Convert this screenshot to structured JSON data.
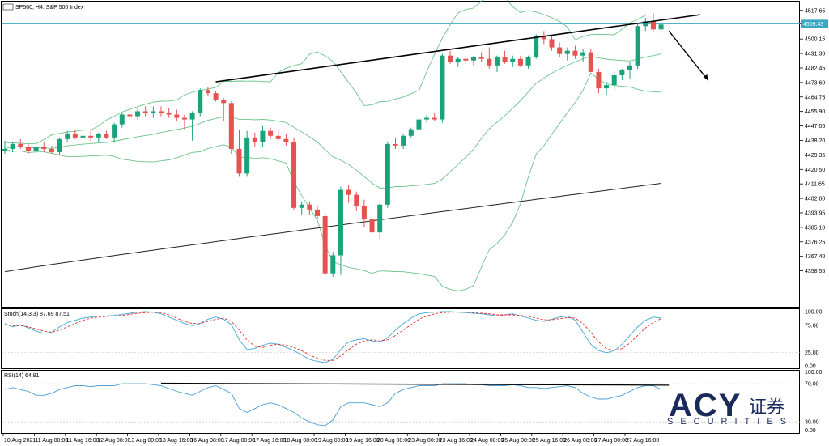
{
  "colors": {
    "bull": "#1aa37a",
    "bear": "#e5524f",
    "band": "#6cc48a",
    "sma": "#222222",
    "stoch_main": "#3fa9d6",
    "stoch_signal": "#d9302c",
    "rsi": "#4a9fd6",
    "price_line": "#38a8c0",
    "logo": "#1a2a5a"
  },
  "chart_data": [
    {
      "type": "line",
      "title": "SP500, H4:  S&P 500 Index",
      "ylim": [
        4345,
        4520
      ],
      "price_labels": [
        "4517.65",
        "4509.43",
        "4500.15",
        "4491.30",
        "4482.45",
        "4473.60",
        "4464.75",
        "4455.90",
        "4447.05",
        "4438.20",
        "4429.35",
        "4420.50",
        "4411.65",
        "4402.80",
        "4393.95",
        "4385.10",
        "4376.25",
        "4367.40",
        "4358.55"
      ],
      "current_price": "4509.43",
      "x_labels": [
        "10 Aug 2021",
        "11 Aug 00:00",
        "11 Aug 16:00",
        "12 Aug 08:00",
        "13 Aug 00:00",
        "13 Aug 16:00",
        "16 Aug 08:00",
        "17 Aug 00:00",
        "17 Aug 16:00",
        "18 Aug 08:00",
        "19 Aug 00:00",
        "19 Aug 16:00",
        "20 Aug 08:00",
        "23 Aug 00:00",
        "23 Aug 16:00",
        "24 Aug 08:00",
        "25 Aug 00:00",
        "25 Aug 16:00",
        "26 Aug 08:00",
        "27 Aug 00:00",
        "27 Aug 16:00"
      ],
      "candles": [
        [
          4432,
          4438,
          4430,
          4433
        ],
        [
          4433,
          4437,
          4431,
          4436
        ],
        [
          4436,
          4439,
          4433,
          4434
        ],
        [
          4434,
          4436,
          4430,
          4432
        ],
        [
          4432,
          4435,
          4429,
          4434
        ],
        [
          4434,
          4437,
          4431,
          4433
        ],
        [
          4433,
          4435,
          4430,
          4431
        ],
        [
          4431,
          4440,
          4429,
          4439
        ],
        [
          4439,
          4444,
          4437,
          4442
        ],
        [
          4442,
          4445,
          4439,
          4440
        ],
        [
          4440,
          4443,
          4437,
          4441
        ],
        [
          4441,
          4444,
          4438,
          4440
        ],
        [
          4440,
          4443,
          4437,
          4442
        ],
        [
          4442,
          4444,
          4439,
          4440
        ],
        [
          4440,
          4449,
          4437,
          4448
        ],
        [
          4448,
          4455,
          4446,
          4454
        ],
        [
          4454,
          4458,
          4451,
          4453
        ],
        [
          4453,
          4458,
          4451,
          4456
        ],
        [
          4456,
          4459,
          4453,
          4455
        ],
        [
          4455,
          4459,
          4452,
          4456
        ],
        [
          4456,
          4459,
          4453,
          4455
        ],
        [
          4455,
          4458,
          4452,
          4454
        ],
        [
          4454,
          4457,
          4450,
          4452
        ],
        [
          4452,
          4454,
          4445,
          4451
        ],
        [
          4451,
          4456,
          4438,
          4455
        ],
        [
          4455,
          4470,
          4453,
          4469
        ],
        [
          4469,
          4471,
          4465,
          4467
        ],
        [
          4467,
          4468,
          4462,
          4463
        ],
        [
          4463,
          4464,
          4450,
          4461
        ],
        [
          4461,
          4462,
          4430,
          4433
        ],
        [
          4433,
          4445,
          4416,
          4418
        ],
        [
          4418,
          4444,
          4416,
          4440
        ],
        [
          4440,
          4443,
          4434,
          4437
        ],
        [
          4437,
          4447,
          4434,
          4444
        ],
        [
          4444,
          4446,
          4439,
          4441
        ],
        [
          4441,
          4445,
          4438,
          4439
        ],
        [
          4439,
          4442,
          4435,
          4437
        ],
        [
          4437,
          4440,
          4396,
          4397
        ],
        [
          4397,
          4401,
          4393,
          4399
        ],
        [
          4399,
          4401,
          4393,
          4396
        ],
        [
          4396,
          4398,
          4390,
          4392
        ],
        [
          4392,
          4394,
          4355,
          4357
        ],
        [
          4357,
          4370,
          4355,
          4368
        ],
        [
          4368,
          4410,
          4356,
          4408
        ],
        [
          4408,
          4411,
          4400,
          4405
        ],
        [
          4405,
          4407,
          4395,
          4398
        ],
        [
          4398,
          4402,
          4385,
          4390
        ],
        [
          4390,
          4392,
          4379,
          4382
        ],
        [
          4382,
          4400,
          4378,
          4399
        ],
        [
          4399,
          4437,
          4397,
          4436
        ],
        [
          4436,
          4440,
          4433,
          4435
        ],
        [
          4435,
          4442,
          4433,
          4441
        ],
        [
          4441,
          4446,
          4440,
          4445
        ],
        [
          4445,
          4452,
          4443,
          4451
        ],
        [
          4451,
          4454,
          4449,
          4452
        ],
        [
          4452,
          4455,
          4450,
          4451
        ],
        [
          4451,
          4491,
          4449,
          4490
        ],
        [
          4490,
          4493,
          4485,
          4486
        ],
        [
          4486,
          4489,
          4483,
          4488
        ],
        [
          4488,
          4490,
          4485,
          4487
        ],
        [
          4487,
          4490,
          4484,
          4489
        ],
        [
          4489,
          4492,
          4486,
          4488
        ],
        [
          4488,
          4495,
          4482,
          4484
        ],
        [
          4484,
          4490,
          4480,
          4489
        ],
        [
          4489,
          4493,
          4485,
          4486
        ],
        [
          4486,
          4490,
          4483,
          4488
        ],
        [
          4488,
          4490,
          4483,
          4484
        ],
        [
          4484,
          4490,
          4482,
          4489
        ],
        [
          4489,
          4503,
          4488,
          4502
        ],
        [
          4502,
          4505,
          4497,
          4500
        ],
        [
          4500,
          4502,
          4493,
          4495
        ],
        [
          4495,
          4498,
          4489,
          4491
        ],
        [
          4491,
          4495,
          4487,
          4493
        ],
        [
          4493,
          4496,
          4488,
          4490
        ],
        [
          4490,
          4494,
          4486,
          4492
        ],
        [
          4492,
          4494,
          4480,
          4480
        ],
        [
          4480,
          4482,
          4467,
          4470
        ],
        [
          4470,
          4474,
          4466,
          4472
        ],
        [
          4472,
          4480,
          4469,
          4478
        ],
        [
          4478,
          4482,
          4475,
          4481
        ],
        [
          4481,
          4486,
          4476,
          4484
        ],
        [
          4484,
          4510,
          4482,
          4508
        ],
        [
          4508,
          4513,
          4505,
          4511
        ],
        [
          4511,
          4516,
          4505,
          4506
        ],
        [
          4506,
          4510,
          4503,
          4509
        ]
      ],
      "trendline_label": "",
      "arrow_label": ""
    },
    {
      "type": "line",
      "title": "Stoch(14,3,3) 87.69 87.51",
      "ylim": [
        0,
        100
      ],
      "levels": [
        "100.00",
        "75.00",
        "25.00",
        "0.00"
      ],
      "main": [
        78,
        72,
        76,
        70,
        64,
        60,
        62,
        72,
        80,
        84,
        88,
        90,
        92,
        92,
        93,
        95,
        97,
        99,
        100,
        99,
        96,
        90,
        84,
        78,
        74,
        78,
        86,
        90,
        86,
        76,
        48,
        30,
        32,
        38,
        42,
        40,
        34,
        28,
        20,
        12,
        8,
        6,
        12,
        30,
        44,
        48,
        50,
        46,
        44,
        52,
        66,
        78,
        88,
        96,
        98,
        99,
        100,
        100,
        99,
        98,
        97,
        96,
        94,
        92,
        94,
        96,
        92,
        88,
        84,
        82,
        86,
        90,
        92,
        84,
        62,
        40,
        28,
        24,
        28,
        40,
        56,
        72,
        84,
        90,
        88
      ],
      "signal": [
        76,
        74,
        74,
        72,
        68,
        64,
        62,
        66,
        72,
        78,
        84,
        88,
        90,
        91,
        92,
        93,
        95,
        97,
        98,
        99,
        98,
        94,
        88,
        82,
        78,
        78,
        82,
        86,
        88,
        82,
        66,
        48,
        36,
        34,
        38,
        40,
        38,
        34,
        28,
        20,
        14,
        10,
        10,
        18,
        30,
        40,
        46,
        48,
        46,
        48,
        56,
        66,
        76,
        86,
        92,
        96,
        98,
        99,
        99,
        99,
        98,
        97,
        96,
        94,
        94,
        94,
        93,
        91,
        88,
        85,
        85,
        87,
        89,
        88,
        78,
        62,
        44,
        32,
        28,
        32,
        42,
        56,
        70,
        80,
        87
      ]
    },
    {
      "type": "line",
      "title": "RSI(14) 64.91",
      "ylim": [
        20,
        82
      ],
      "levels": [
        "100.00",
        "70.00",
        "30.00",
        "0.00"
      ],
      "values": [
        64,
        66,
        64,
        62,
        58,
        58,
        60,
        64,
        66,
        68,
        68,
        67,
        68,
        68,
        68,
        70,
        70,
        70,
        70,
        69,
        68,
        65,
        62,
        60,
        58,
        62,
        66,
        68,
        64,
        60,
        44,
        40,
        44,
        48,
        50,
        48,
        44,
        40,
        34,
        30,
        27,
        26,
        32,
        46,
        50,
        50,
        50,
        48,
        46,
        50,
        60,
        64,
        66,
        68,
        68,
        68,
        70,
        70,
        70,
        70,
        69,
        69,
        68,
        68,
        68,
        69,
        68,
        66,
        66,
        65,
        66,
        67,
        68,
        66,
        60,
        56,
        54,
        54,
        56,
        58,
        62,
        66,
        68,
        68,
        64
      ]
    }
  ],
  "logo": {
    "name": "ACY",
    "cn": "证券",
    "sub": "SECURITIES"
  }
}
